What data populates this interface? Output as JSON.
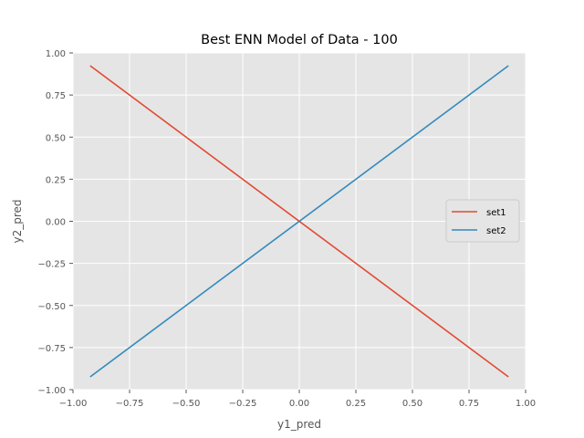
{
  "chart_data": {
    "type": "line",
    "title": "Best ENN Model of Data - 100",
    "xlabel": "y1_pred",
    "ylabel": "y2_pred",
    "xlim": [
      -1.0,
      1.0
    ],
    "ylim": [
      -1.0,
      1.0
    ],
    "x_ticks": [
      -1.0,
      -0.75,
      -0.5,
      -0.25,
      0.0,
      0.25,
      0.5,
      0.75,
      1.0
    ],
    "y_ticks": [
      -1.0,
      -0.75,
      -0.5,
      -0.25,
      0.0,
      0.25,
      0.5,
      0.75,
      1.0
    ],
    "x_tick_labels": [
      "−1.00",
      "−0.75",
      "−0.50",
      "−0.25",
      "0.00",
      "0.25",
      "0.50",
      "0.75",
      "1.00"
    ],
    "y_tick_labels": [
      "−1.00",
      "−0.75",
      "−0.50",
      "−0.25",
      "0.00",
      "0.25",
      "0.50",
      "0.75",
      "1.00"
    ],
    "grid": true,
    "legend_position": "center-right",
    "background": "#e5e5e5",
    "series": [
      {
        "name": "set1",
        "color": "#e24a33",
        "x": [
          -0.924,
          0.924
        ],
        "y": [
          0.924,
          -0.924
        ]
      },
      {
        "name": "set2",
        "color": "#348abd",
        "x": [
          -0.924,
          0.924
        ],
        "y": [
          -0.924,
          0.924
        ]
      }
    ]
  }
}
